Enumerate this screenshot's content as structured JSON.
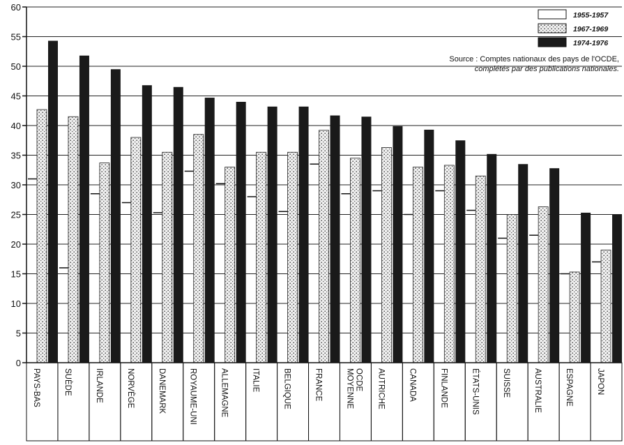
{
  "chart_data": {
    "type": "bar",
    "categories": [
      "PAYS-BAS",
      "SUÈDE",
      "IRLANDE",
      "NORVÈGE",
      "DANEMARK",
      "ROYAUME-UNI",
      "ALLEMAGNE",
      "ITALIE",
      "BELGIQUE",
      "FRANCE",
      "MOYENNE OCDE",
      "AUTRICHE",
      "CANADA",
      "FINLANDE",
      "ÉTATS-UNIS",
      "SUISSE",
      "AUSTRALIE",
      "ESPAGNE",
      "JAPON"
    ],
    "series": [
      {
        "name": "1955-1957",
        "values": [
          31,
          16,
          28.5,
          27,
          25.3,
          32.3,
          30.2,
          28,
          25.5,
          33.5,
          28.5,
          29,
          25,
          29,
          25.7,
          21,
          21.5,
          15,
          17
        ]
      },
      {
        "name": "1967-1969",
        "values": [
          42.7,
          41.5,
          33.7,
          38,
          35.5,
          38.5,
          33,
          35.5,
          35.5,
          39.2,
          34.5,
          36.3,
          33,
          33.3,
          31.5,
          25,
          26.3,
          15.3,
          19
        ]
      },
      {
        "name": "1974-1976",
        "values": [
          54.3,
          51.8,
          49.5,
          46.8,
          46.5,
          44.7,
          44,
          43.2,
          43.2,
          41.7,
          41.5,
          39.9,
          39.3,
          37.5,
          35.2,
          33.5,
          32.8,
          25.3,
          25
        ]
      }
    ],
    "ylim": [
      0,
      60
    ],
    "yticks": [
      0,
      5,
      10,
      15,
      20,
      25,
      30,
      35,
      40,
      45,
      50,
      55,
      60
    ],
    "grid": true,
    "legend_position": "top-right",
    "colors": {
      "1955-1957": "#ffffff",
      "1967-1969": "#f0f0f0",
      "1974-1976": "#1a1a1a"
    },
    "source_line1": "Source : Comptes nationaux des pays de l'OCDE,",
    "source_line2": "complétés par des publications nationales."
  }
}
